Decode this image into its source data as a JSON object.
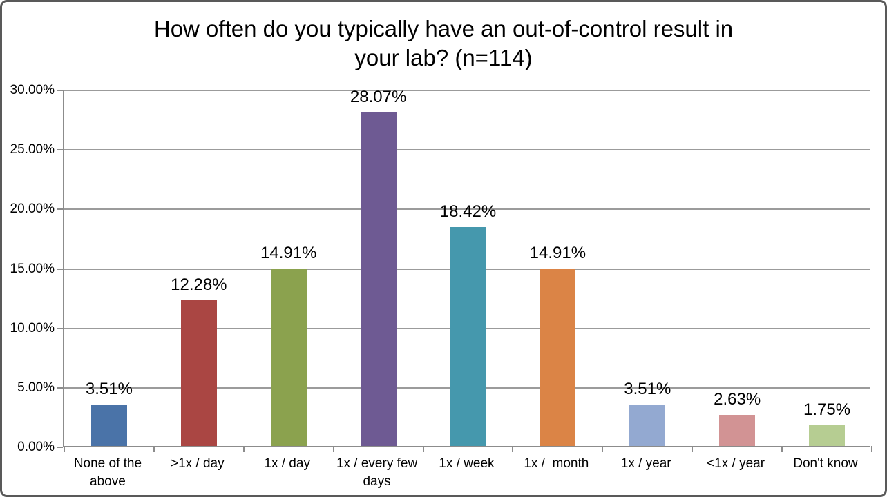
{
  "window": {
    "background": "#ffffff",
    "border_color": "#595959"
  },
  "chart_data": {
    "type": "bar",
    "title": "How often do you typically have an out-of-control result in your lab? (n=114)",
    "title_lines": [
      "How often do you typically have an out-of-control result in",
      "your lab? (n=114)"
    ],
    "n": 114,
    "categories": [
      "None of the above",
      ">1x / day",
      "1x / day",
      "1x / every few days",
      "1x / week",
      "1x /  month",
      "1x / year",
      "<1x / year",
      "Don't know"
    ],
    "values": [
      3.51,
      12.28,
      14.91,
      28.07,
      18.42,
      14.91,
      3.51,
      2.63,
      1.75
    ],
    "value_labels": [
      "3.51%",
      "12.28%",
      "14.91%",
      "28.07%",
      "18.42%",
      "14.91%",
      "3.51%",
      "2.63%",
      "1.75%"
    ],
    "bar_colors": [
      "#4A73A8",
      "#AA4643",
      "#8BA24E",
      "#6E5A93",
      "#4598AD",
      "#DB8446",
      "#93A9D1",
      "#D29394",
      "#B6CD92"
    ],
    "xlabel": "",
    "ylabel": "",
    "ylim": [
      0,
      30
    ],
    "yticks": [
      0,
      5,
      10,
      15,
      20,
      25,
      30
    ],
    "ytick_labels": [
      "0.00%",
      "5.00%",
      "10.00%",
      "15.00%",
      "20.00%",
      "25.00%",
      "30.00%"
    ],
    "grid": true,
    "legend": "none",
    "gridline_color": "#9b9b9b",
    "axis_color": "#8c8c8c",
    "label_color": "#000000"
  }
}
